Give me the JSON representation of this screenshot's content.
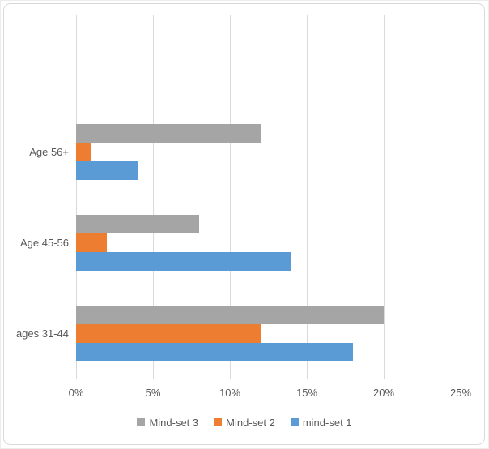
{
  "chart_data": {
    "type": "bar",
    "orientation": "horizontal",
    "title": "",
    "xlabel": "",
    "ylabel": "",
    "categories": [
      "Age 56+",
      "Age 45-56",
      "ages 31-44"
    ],
    "series": [
      {
        "name": "Mind-set 3",
        "color": "#a5a5a5",
        "values": [
          12,
          8,
          20
        ]
      },
      {
        "name": "Mind-set 2",
        "color": "#ed7d31",
        "values": [
          1,
          2,
          12
        ]
      },
      {
        "name": "mind-set 1",
        "color": "#5b9bd5",
        "values": [
          4,
          14,
          18
        ]
      }
    ],
    "xlim": [
      0,
      25
    ],
    "x_ticks": [
      "0%",
      "5%",
      "10%",
      "15%",
      "20%",
      "25%"
    ],
    "grid": true,
    "gridline_color": "#d9d9d9",
    "legend_position": "bottom",
    "text_color": "#595959"
  }
}
